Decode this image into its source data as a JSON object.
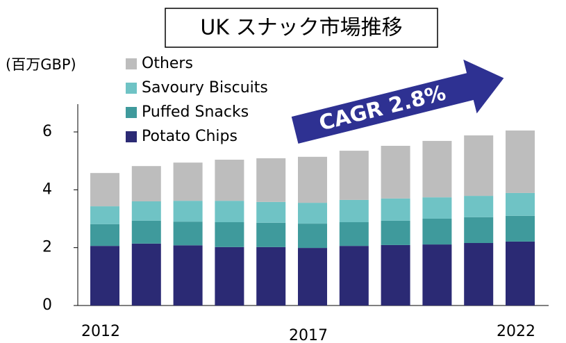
{
  "chart_data": {
    "type": "stacked_bar",
    "title": "UK スナック市場推移",
    "y_axis_label": "(百万GBP)",
    "annotation": "CAGR 2.8%",
    "categories": [
      "2012",
      null,
      null,
      null,
      null,
      "2017",
      null,
      null,
      null,
      null,
      "2022"
    ],
    "series": [
      {
        "name": "Potato Chips",
        "color": "#2b2a74",
        "values": [
          2.06,
          2.14,
          2.08,
          2.02,
          2.02,
          1.99,
          2.06,
          2.09,
          2.11,
          2.16,
          2.21
        ]
      },
      {
        "name": "Puffed Snacks",
        "color": "#3f9a9c",
        "values": [
          0.75,
          0.79,
          0.82,
          0.86,
          0.84,
          0.84,
          0.82,
          0.84,
          0.89,
          0.89,
          0.89
        ]
      },
      {
        "name": "Savoury Biscuits",
        "color": "#6fc3c5",
        "values": [
          0.62,
          0.67,
          0.72,
          0.74,
          0.72,
          0.72,
          0.77,
          0.77,
          0.74,
          0.74,
          0.79
        ]
      },
      {
        "name": "Others",
        "color": "#bdbdbd",
        "values": [
          1.15,
          1.22,
          1.32,
          1.42,
          1.51,
          1.59,
          1.7,
          1.82,
          1.95,
          2.09,
          2.16
        ]
      }
    ],
    "ylim": [
      0,
      7
    ],
    "yticks": [
      0,
      2,
      4,
      6
    ]
  }
}
